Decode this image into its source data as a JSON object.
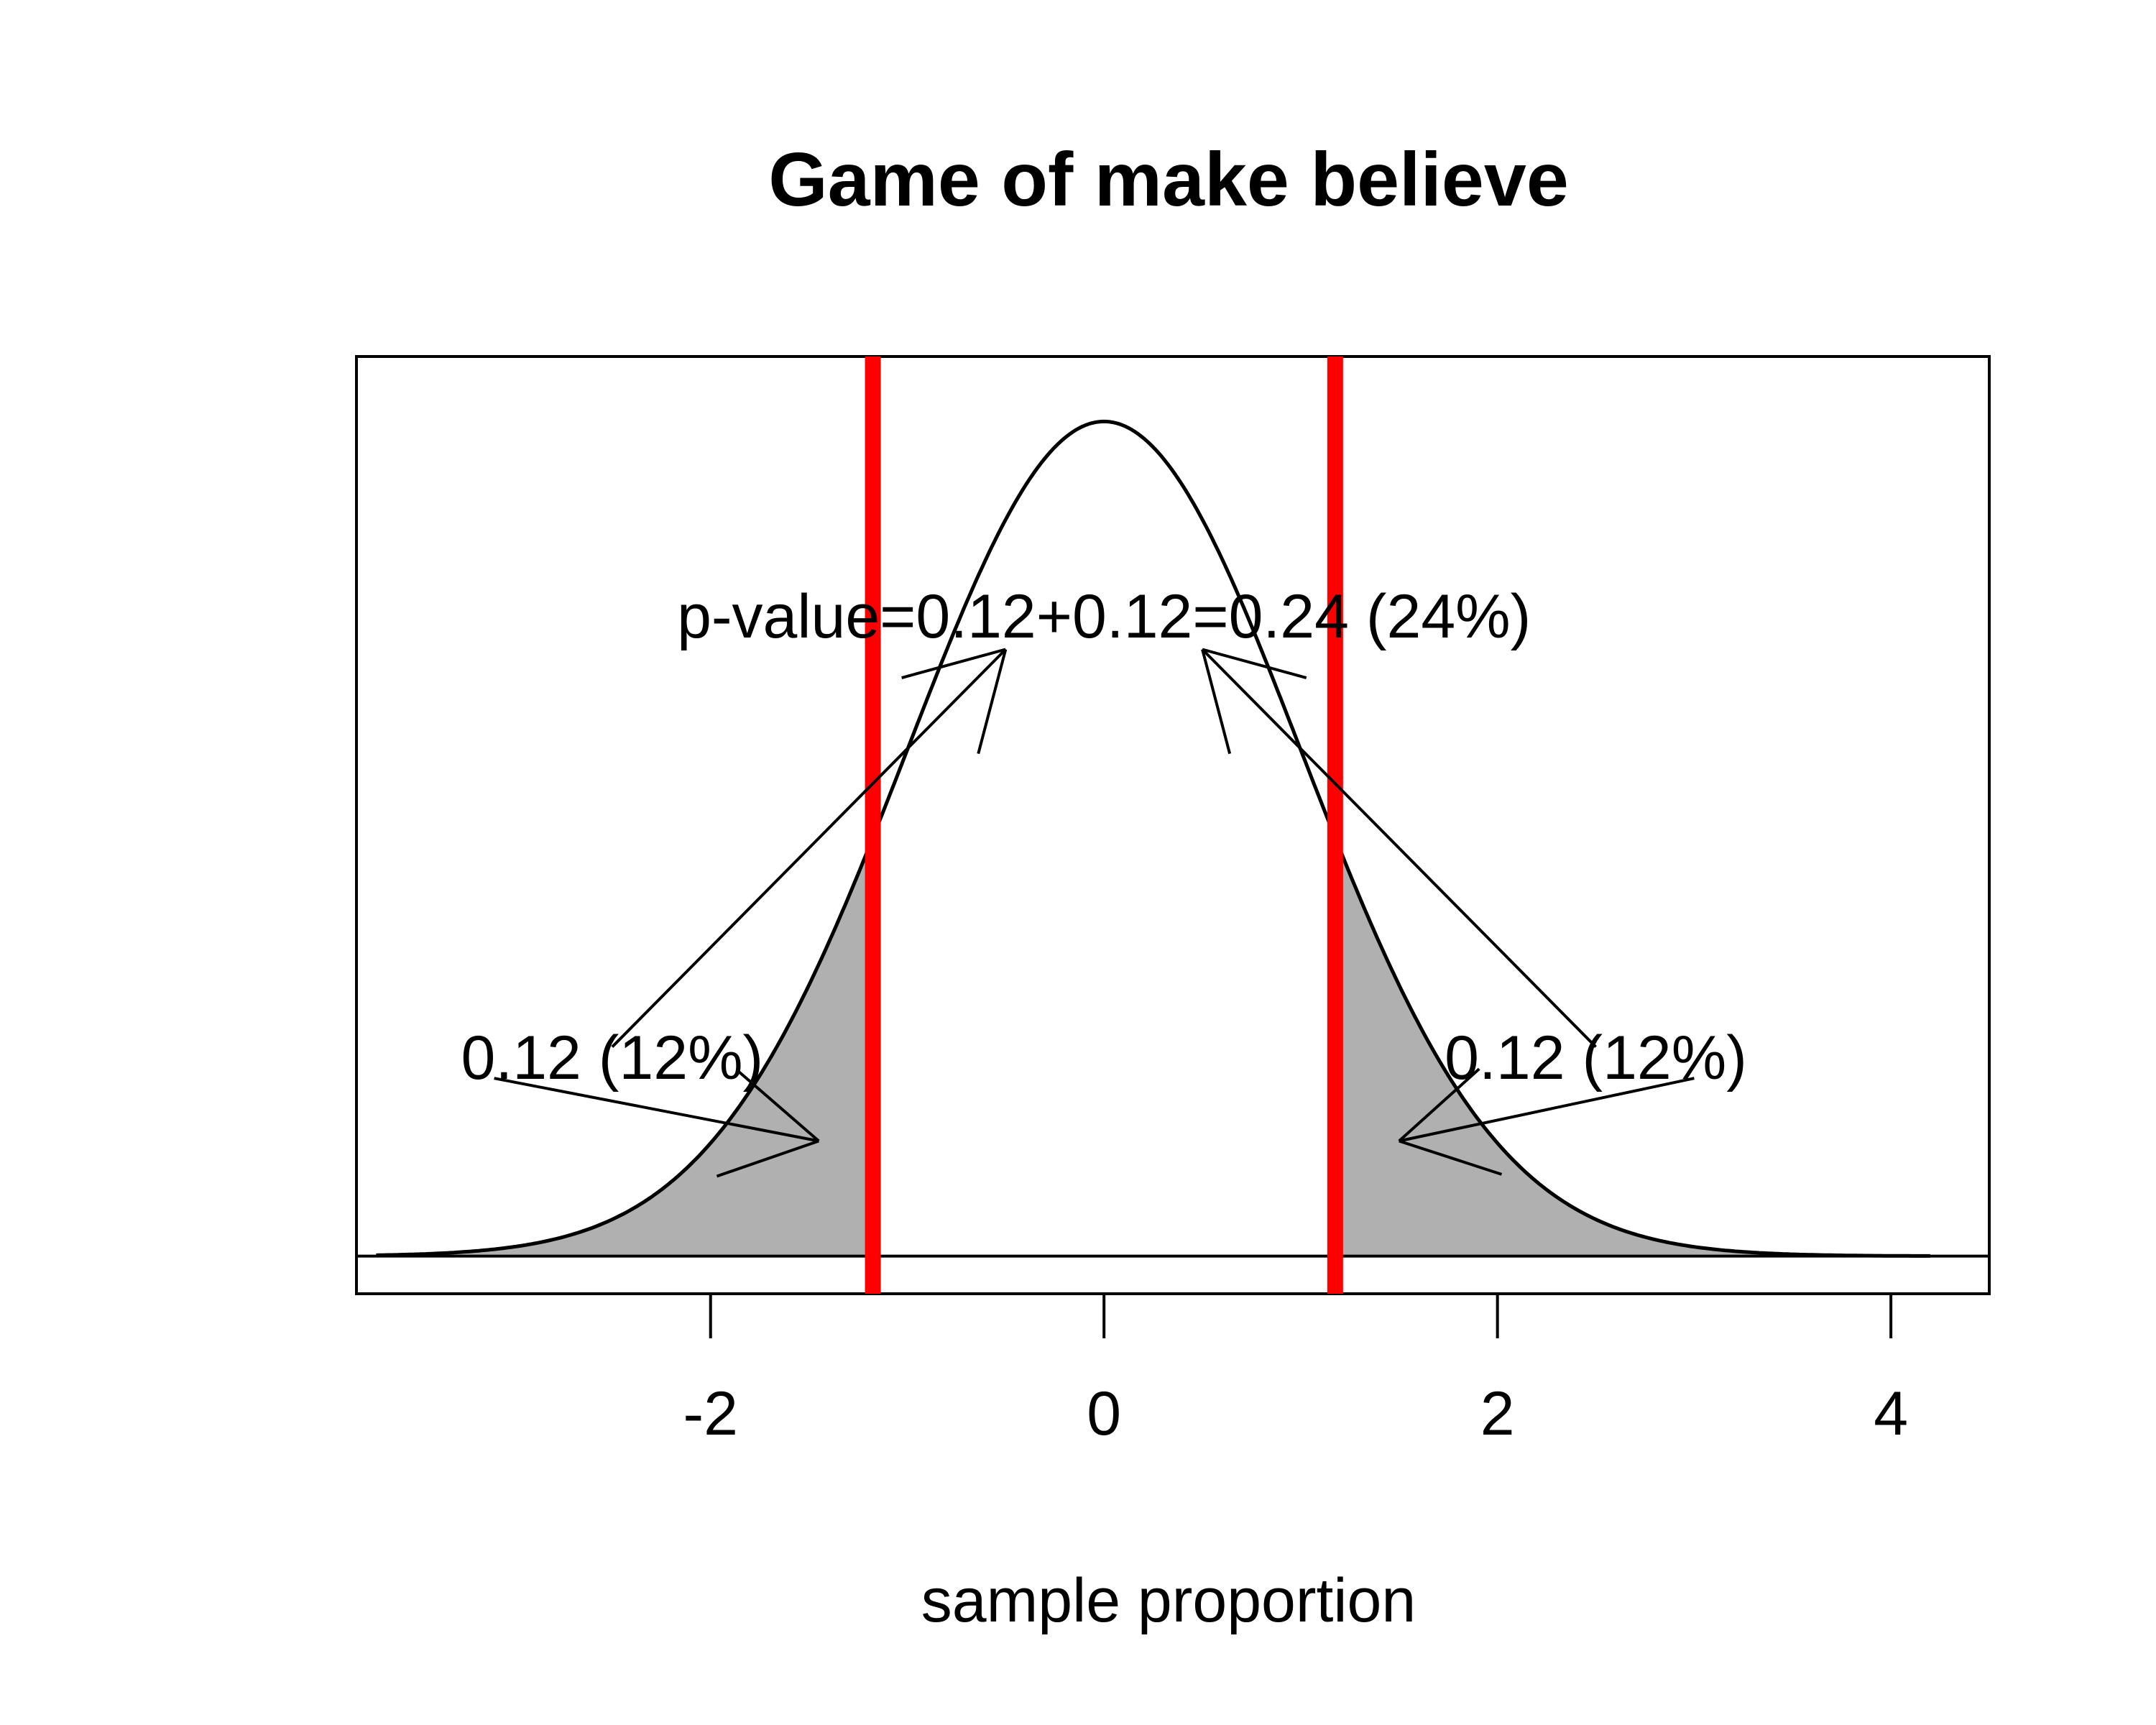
{
  "chart_data": {
    "type": "area",
    "title": "Game of make believe",
    "xlabel": "sample proportion",
    "ylabel": "",
    "xlim": [
      -3.8,
      4.5
    ],
    "ylim": [
      -0.018,
      0.43
    ],
    "xticks": [
      -2,
      0,
      2,
      4
    ],
    "xtick_labels": [
      "-2",
      "0",
      "2",
      "4"
    ],
    "grid": false,
    "curve": {
      "name": "",
      "mean": 0,
      "sd": 1,
      "x_from": -3.7,
      "x_to": 4.2
    },
    "critical_values": [
      -1.175,
      1.175
    ],
    "shaded_tails": [
      {
        "x_from": -3.7,
        "x_to": -1.175,
        "probability": 0.12
      },
      {
        "x_from": 1.175,
        "x_to": 4.2,
        "probability": 0.12
      }
    ],
    "annotations": [
      {
        "text": "p-value=0.12+0.12=0.24 (24%)",
        "x": 0,
        "y": 0.306
      },
      {
        "text": "0.12 (12%)",
        "x": -2.5,
        "y": 0.095
      },
      {
        "text": "0.12 (12%)",
        "x": 2.5,
        "y": 0.095
      }
    ],
    "arrows": [
      {
        "from": [
          -3.1,
          0.085
        ],
        "to": [
          -1.45,
          0.055
        ]
      },
      {
        "from": [
          3.0,
          0.085
        ],
        "to": [
          1.5,
          0.055
        ]
      },
      {
        "from": [
          -2.5,
          0.1
        ],
        "to": [
          -0.5,
          0.29
        ]
      },
      {
        "from": [
          2.5,
          0.1
        ],
        "to": [
          0.5,
          0.29
        ]
      }
    ],
    "colors": {
      "critical_line": "#ff0000",
      "tail_fill": "#b0b0b0",
      "curve": "#000000"
    }
  }
}
